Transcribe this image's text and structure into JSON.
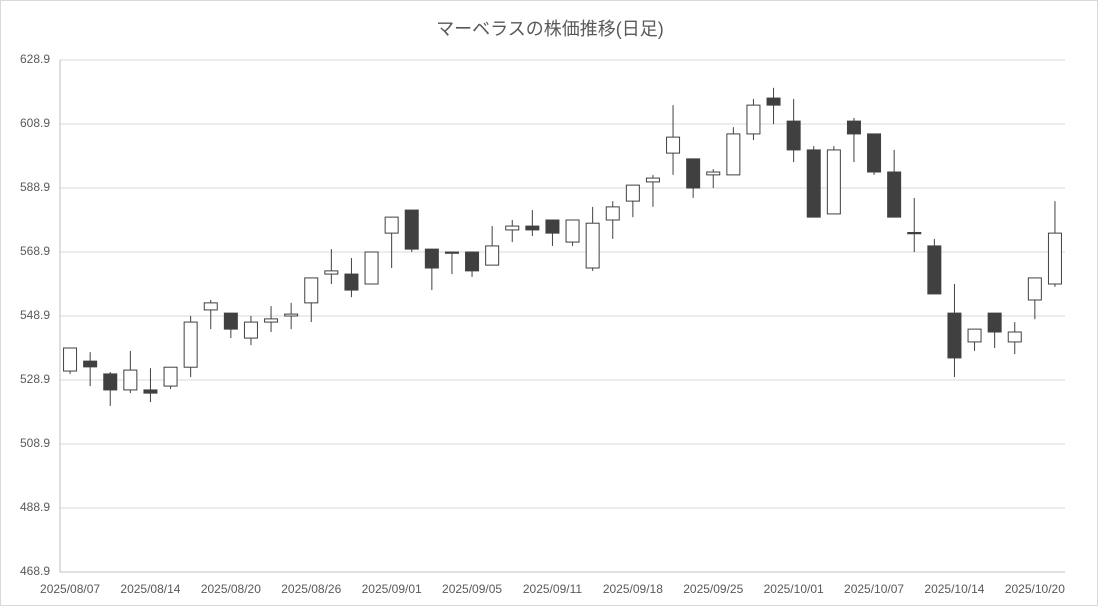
{
  "chart_data": {
    "type": "candlestick",
    "title": "マーベラスの株価推移(日足)",
    "categories": [
      "2025/08/07",
      null,
      null,
      null,
      "2025/08/14",
      null,
      null,
      null,
      "2025/08/20",
      null,
      null,
      null,
      "2025/08/26",
      null,
      null,
      null,
      "2025/09/01",
      null,
      null,
      null,
      "2025/09/05",
      null,
      null,
      null,
      "2025/09/11",
      null,
      null,
      null,
      "2025/09/18",
      null,
      null,
      null,
      "2025/09/25",
      null,
      null,
      null,
      "2025/10/01",
      null,
      null,
      null,
      "2025/10/07",
      null,
      null,
      null,
      "2025/10/14",
      null,
      null,
      null,
      "2025/10/20",
      null
    ],
    "open": [
      531.7,
      534.8,
      530.8,
      525.8,
      525.8,
      527.0,
      532.9,
      550.8,
      549.8,
      542.0,
      547.0,
      548.9,
      553.0,
      562.0,
      562.0,
      558.9,
      574.8,
      582.0,
      569.8,
      568.9,
      568.9,
      564.8,
      575.8,
      577.0,
      578.9,
      572.0,
      563.9,
      578.9,
      584.8,
      590.8,
      599.8,
      598.0,
      593.0,
      593.0,
      605.8,
      617.0,
      609.8,
      600.8,
      580.8,
      609.8,
      605.8,
      593.9,
      575.0,
      570.8,
      549.8,
      540.8,
      549.8,
      540.8,
      553.9,
      558.9
    ],
    "high": [
      538.9,
      537.6,
      531.4,
      538.0,
      532.6,
      532.9,
      548.9,
      553.9,
      549.8,
      548.9,
      552.0,
      553.0,
      560.8,
      569.8,
      567.0,
      568.9,
      579.8,
      582.0,
      569.8,
      568.9,
      568.9,
      577.0,
      578.9,
      582.0,
      578.9,
      578.9,
      583.0,
      584.8,
      589.8,
      593.0,
      614.8,
      598.0,
      594.8,
      607.9,
      616.7,
      620.2,
      616.7,
      602.0,
      602.0,
      610.8,
      605.8,
      600.8,
      585.8,
      573.0,
      558.9,
      544.8,
      549.8,
      547.0,
      560.8,
      584.8
    ],
    "low": [
      530.8,
      527.0,
      520.8,
      524.8,
      522.0,
      526.1,
      529.8,
      544.8,
      542.0,
      539.8,
      543.9,
      544.8,
      547.0,
      558.9,
      554.8,
      558.9,
      563.9,
      568.9,
      557.0,
      562.0,
      561.1,
      564.8,
      572.0,
      573.9,
      570.8,
      570.8,
      563.0,
      573.0,
      579.8,
      583.0,
      593.0,
      585.8,
      588.9,
      593.0,
      603.9,
      608.9,
      597.0,
      579.8,
      580.8,
      597.0,
      593.0,
      579.8,
      568.9,
      555.8,
      529.8,
      538.0,
      538.9,
      537.0,
      547.9,
      558.0
    ],
    "close": [
      538.9,
      533.0,
      525.8,
      532.0,
      524.8,
      532.9,
      547.0,
      553.0,
      544.8,
      547.0,
      548.0,
      549.5,
      560.8,
      563.0,
      557.0,
      568.9,
      579.8,
      569.8,
      563.9,
      568.5,
      563.0,
      570.8,
      577.0,
      575.8,
      574.8,
      578.9,
      577.9,
      583.0,
      589.8,
      592.0,
      604.8,
      588.9,
      593.9,
      605.8,
      614.8,
      614.8,
      600.8,
      579.8,
      600.8,
      605.8,
      593.9,
      579.8,
      574.6,
      555.8,
      535.8,
      544.8,
      543.9,
      543.9,
      560.8,
      574.8
    ],
    "up_color": "#ffffff",
    "down_color": "#404040",
    "edge_color": "#404040",
    "ylim": [
      468.9,
      628.9
    ],
    "yticks": [
      468.9,
      488.9,
      508.9,
      528.9,
      548.9,
      568.9,
      588.9,
      608.9,
      628.9
    ],
    "grid": true
  }
}
